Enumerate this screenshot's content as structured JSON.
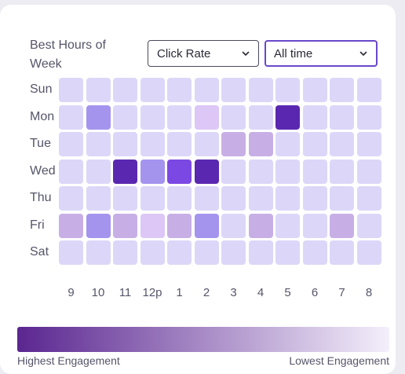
{
  "widget": {
    "title": "Best Hours of Week",
    "metric_select": {
      "value": "Click Rate"
    },
    "range_select": {
      "value": "All time"
    }
  },
  "days": [
    "Sun",
    "Mon",
    "Tue",
    "Wed",
    "Thu",
    "Fri",
    "Sat"
  ],
  "hours": [
    "9",
    "10",
    "11",
    "12p",
    "1",
    "2",
    "3",
    "4",
    "5",
    "6",
    "7",
    "8"
  ],
  "levels": [
    [
      0,
      0,
      0,
      0,
      0,
      0,
      0,
      0,
      0,
      0,
      0,
      0
    ],
    [
      0,
      3,
      0,
      0,
      0,
      1,
      0,
      0,
      5,
      0,
      0,
      0
    ],
    [
      0,
      0,
      0,
      0,
      0,
      0,
      2,
      2,
      0,
      0,
      0,
      0
    ],
    [
      0,
      0,
      5,
      3,
      4,
      5,
      0,
      0,
      0,
      0,
      0,
      0
    ],
    [
      0,
      0,
      0,
      0,
      0,
      0,
      0,
      0,
      0,
      0,
      0,
      0
    ],
    [
      2,
      3,
      2,
      1,
      2,
      3,
      0,
      2,
      0,
      0,
      2,
      0
    ],
    [
      0,
      0,
      0,
      0,
      0,
      0,
      0,
      0,
      0,
      0,
      0,
      0
    ]
  ],
  "level_colors": [
    "#dcd7f8",
    "#dcc7f6",
    "#c7afe6",
    "#a494ee",
    "#7c48e3",
    "#5a28b0"
  ],
  "legend": {
    "high_label": "Highest Engagement",
    "low_label": "Lowest Engagement",
    "gradient_start": "#5a2690",
    "gradient_end": "#f4effb"
  }
}
